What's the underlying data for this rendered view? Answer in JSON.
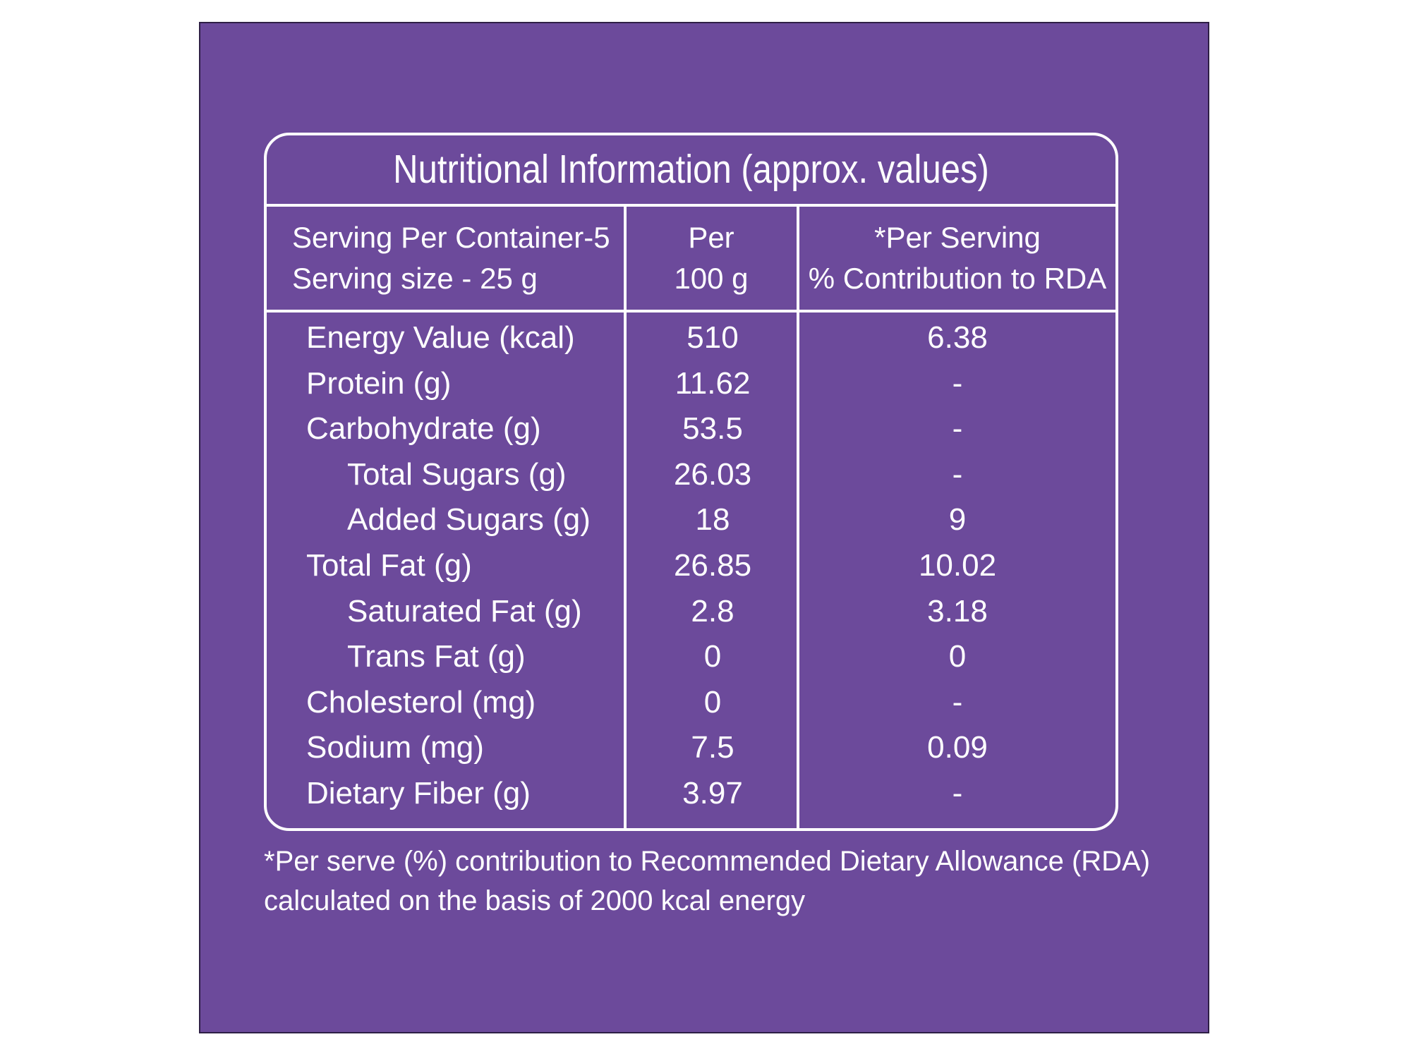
{
  "title": "Nutritional Information (approx. values)",
  "header": {
    "left_line1": "Serving Per Container-5",
    "left_line2": "Serving size - 25 g",
    "mid_line1": "Per",
    "mid_line2": "100 g",
    "right_line1": "*Per Serving",
    "right_line2": "% Contribution to RDA"
  },
  "rows": [
    {
      "label": "Energy Value (kcal)",
      "per100": "510",
      "serving": "6.38"
    },
    {
      "label": "Protein (g)",
      "per100": "11.62",
      "serving": "-"
    },
    {
      "label": "Carbohydrate (g)",
      "per100": "53.5",
      "serving": "-"
    },
    {
      "label": "Total Sugars (g)",
      "per100": "26.03",
      "serving": "-"
    },
    {
      "label": "Added Sugars (g)",
      "per100": "18",
      "serving": "9"
    },
    {
      "label": "Total Fat (g)",
      "per100": "26.85",
      "serving": "10.02"
    },
    {
      "label": "Saturated Fat (g)",
      "per100": "2.8",
      "serving": "3.18"
    },
    {
      "label": "Trans Fat (g)",
      "per100": "0",
      "serving": "0"
    },
    {
      "label": "Cholesterol (mg)",
      "per100": "0",
      "serving": "-"
    },
    {
      "label": "Sodium (mg)",
      "per100": "7.5",
      "serving": "0.09"
    },
    {
      "label": "Dietary Fiber (g)",
      "per100": "3.97",
      "serving": "-"
    }
  ],
  "footnote": {
    "line1": "*Per serve (%) contribution to Recommended Dietary Allowance (RDA)",
    "line2": "calculated on the basis of 2000 kcal energy"
  },
  "colors": {
    "background": "#6c4a9b",
    "text": "#ffffff"
  }
}
